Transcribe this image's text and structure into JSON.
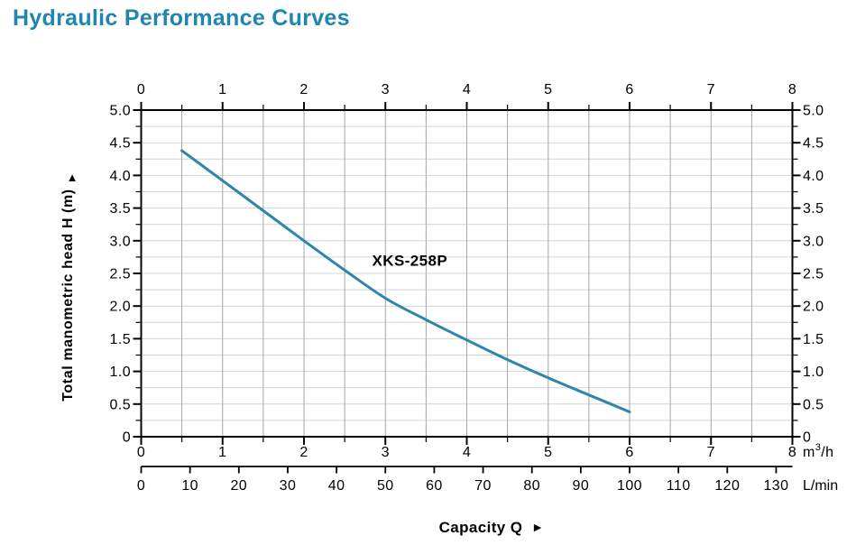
{
  "page": {
    "title": "Hydraulic Performance Curves",
    "title_color": "#1e86af",
    "background": "#ffffff"
  },
  "chart_data": {
    "type": "line",
    "title": "Hydraulic Performance Curves",
    "x_top_axis": {
      "ticks": [
        0,
        1,
        2,
        3,
        4,
        5,
        6,
        7,
        8
      ],
      "minor_step": 0.5,
      "range": [
        0,
        8
      ]
    },
    "x_bottom_axis": {
      "unit": "m³/h",
      "ticks": [
        0,
        1,
        2,
        3,
        4,
        5,
        6,
        7,
        8
      ],
      "minor_step": 0.5,
      "range": [
        0,
        8
      ]
    },
    "x_secondary_axis": {
      "unit": "L/min",
      "ticks": [
        0,
        10,
        20,
        30,
        40,
        50,
        60,
        70,
        80,
        90,
        100,
        110,
        120,
        130
      ],
      "range": [
        0,
        133.333
      ]
    },
    "y_axis": {
      "label": "Total manometric head H (m)",
      "arrow": "▲",
      "tick_labels": [
        "5.0",
        "4.5",
        "4.0",
        "3.5",
        "3.0",
        "2.5",
        "2.0",
        "1.5",
        "1.0",
        "0.5",
        "0"
      ],
      "tick_values": [
        5,
        4.5,
        4,
        3.5,
        3,
        2.5,
        2,
        1.5,
        1,
        0.5,
        0
      ],
      "minor_step": 0.25,
      "range": [
        0,
        5
      ],
      "mirrored_right": true
    },
    "x_label": {
      "text": "Capacity Q",
      "arrow": "►"
    },
    "grid": {
      "vertical_step": 0.5,
      "horizontal_step": 0.25,
      "vertical_color": "#a6a6a6",
      "horizontal_color": "#d4d4d4"
    },
    "axis_color": "#000000",
    "legend_position": "none",
    "series": [
      {
        "name": "XKS-258P",
        "color": "#2e86ab",
        "x": [
          0.5,
          1.0,
          1.5,
          2.0,
          2.5,
          3.0,
          3.5,
          4.0,
          4.5,
          5.0,
          5.5,
          6.0
        ],
        "y": [
          4.38,
          3.92,
          3.46,
          3.0,
          2.55,
          2.12,
          1.79,
          1.48,
          1.18,
          0.9,
          0.64,
          0.38
        ],
        "label_position": {
          "x": 3.3,
          "y": 2.62
        }
      }
    ]
  }
}
